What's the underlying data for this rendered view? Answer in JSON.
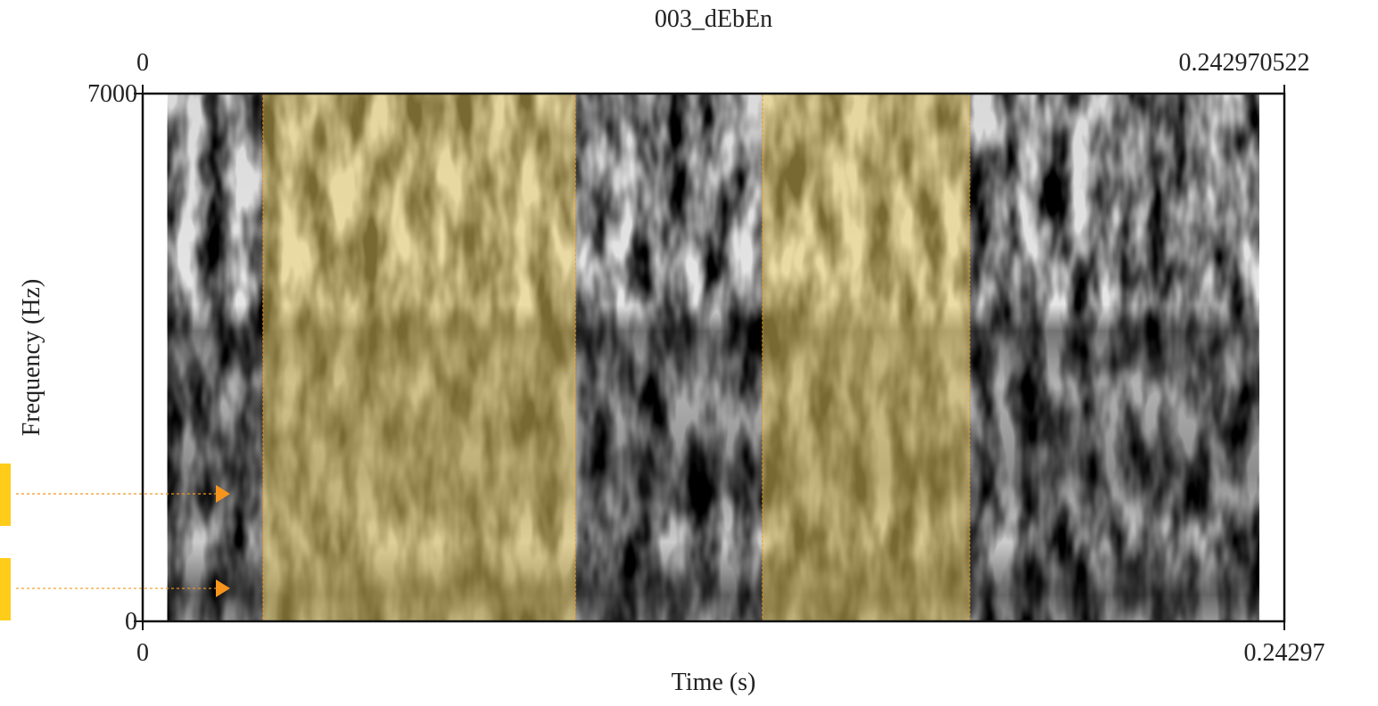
{
  "chart_data": {
    "type": "spectrogram",
    "title": "003_dEbEn",
    "x_label": "Time (s)",
    "y_label": "Frequency (Hz)",
    "xlim": [
      0,
      0.242970522
    ],
    "ylim": [
      0,
      7000
    ],
    "xticks_top": [
      0,
      0.242970522
    ],
    "xticks": [
      0,
      0.24297
    ],
    "yticks": [
      0,
      7000
    ],
    "signal_span": [
      0.0053,
      0.2376
    ],
    "highlights": [
      {
        "start": 0.0256,
        "end": 0.0921
      },
      {
        "start": 0.1319,
        "end": 0.176
      }
    ],
    "highlight_color": "#f0d264",
    "markers": [
      {
        "time": 0.0186,
        "frequency": 1691
      },
      {
        "time": 0.0186,
        "frequency": 437
      }
    ],
    "marker_color": "#f7941d",
    "marker_tab_color": "#ffcc1a"
  }
}
